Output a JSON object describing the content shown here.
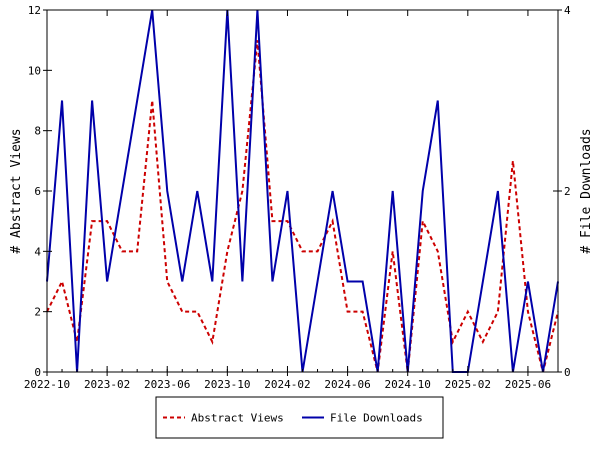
{
  "chart_data": {
    "type": "line",
    "x_dates": [
      "2022-10",
      "2022-11",
      "2022-12",
      "2023-01",
      "2023-02",
      "2023-03",
      "2023-04",
      "2023-05",
      "2023-06",
      "2023-07",
      "2023-08",
      "2023-09",
      "2023-10",
      "2023-11",
      "2023-12",
      "2024-01",
      "2024-02",
      "2024-03",
      "2024-04",
      "2024-05",
      "2024-06",
      "2024-07",
      "2024-08",
      "2024-09",
      "2024-10",
      "2024-11",
      "2024-12",
      "2025-01",
      "2025-02",
      "2025-03",
      "2025-04",
      "2025-05",
      "2025-06",
      "2025-07",
      "2025-08"
    ],
    "x_tick_labels": [
      "2022-10",
      "2023-02",
      "2023-06",
      "2023-10",
      "2024-02",
      "2024-06",
      "2024-10",
      "2025-02",
      "2025-06"
    ],
    "x_tick_dates": [
      "2022-10",
      "2023-02",
      "2023-06",
      "2023-10",
      "2024-02",
      "2024-06",
      "2024-10",
      "2025-02",
      "2025-06"
    ],
    "ylabel": "# Abstract Views",
    "y2label": "# File Downloads",
    "ylim": [
      0,
      12
    ],
    "y2lim": [
      0,
      4
    ],
    "y_ticks": [
      0,
      2,
      4,
      6,
      8,
      10,
      12
    ],
    "y2_ticks": [
      0,
      2,
      4
    ],
    "grid": false,
    "legend_position": "bottom-center",
    "series": [
      {
        "name": "Abstract Views",
        "axis": "left",
        "color": "#cc0000",
        "dash": "dashed",
        "values": [
          2,
          3,
          1,
          5,
          5,
          4,
          4,
          9,
          3,
          2,
          2,
          1,
          4,
          6,
          11,
          5,
          5,
          4,
          4,
          5,
          2,
          2,
          0,
          4,
          0,
          5,
          4,
          1,
          2,
          1,
          2,
          7,
          2,
          0,
          2
        ]
      },
      {
        "name": "File Downloads",
        "axis": "right",
        "color": "#0000aa",
        "dash": "solid",
        "values": [
          1,
          3,
          0,
          3,
          1,
          2,
          3,
          4,
          2,
          1,
          2,
          1,
          4,
          1,
          4,
          1,
          2,
          0,
          1,
          2,
          1,
          1,
          0,
          2,
          0,
          2,
          3,
          0,
          0,
          1,
          2,
          0,
          1,
          0,
          1
        ]
      }
    ]
  }
}
